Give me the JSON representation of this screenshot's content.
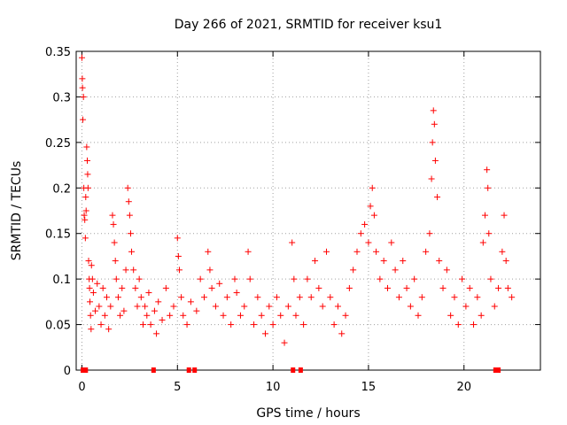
{
  "chart_data": {
    "type": "scatter",
    "title": "Day 266 of 2021, SRMTID for receiver ksu1",
    "xlabel": "GPS time / hours",
    "ylabel": "SRMTID / TECUs",
    "xlim": [
      -0.3,
      24.0
    ],
    "ylim": [
      0,
      0.35
    ],
    "x_ticks": [
      0,
      5,
      10,
      15,
      20
    ],
    "x_tick_labels": [
      "0",
      "5",
      "10",
      "15",
      "20"
    ],
    "y_ticks": [
      0,
      0.05,
      0.1,
      0.15,
      0.2,
      0.25,
      0.3,
      0.35
    ],
    "y_tick_labels": [
      "0",
      "0.05",
      "0.1",
      "0.15",
      "0.2",
      "0.25",
      "0.3",
      "0.35"
    ],
    "grid": true,
    "marker": "+",
    "color": "#ff0000",
    "zero_markers": [
      0.05,
      0.2,
      3.75,
      5.6,
      5.9,
      11.05,
      11.45,
      21.65,
      21.8
    ],
    "series": [
      {
        "name": "SRMTID",
        "points": [
          [
            0.0,
            0.343
          ],
          [
            0.02,
            0.32
          ],
          [
            0.03,
            0.31
          ],
          [
            0.05,
            0.275
          ],
          [
            0.08,
            0.3
          ],
          [
            0.1,
            0.2
          ],
          [
            0.12,
            0.17
          ],
          [
            0.15,
            0.165
          ],
          [
            0.18,
            0.145
          ],
          [
            0.2,
            0.19
          ],
          [
            0.22,
            0.175
          ],
          [
            0.25,
            0.245
          ],
          [
            0.28,
            0.23
          ],
          [
            0.3,
            0.215
          ],
          [
            0.32,
            0.2
          ],
          [
            0.35,
            0.12
          ],
          [
            0.38,
            0.1
          ],
          [
            0.4,
            0.09
          ],
          [
            0.42,
            0.075
          ],
          [
            0.45,
            0.06
          ],
          [
            0.48,
            0.045
          ],
          [
            0.5,
            0.115
          ],
          [
            0.55,
            0.1
          ],
          [
            0.6,
            0.085
          ],
          [
            0.7,
            0.065
          ],
          [
            0.8,
            0.095
          ],
          [
            0.9,
            0.07
          ],
          [
            1.0,
            0.05
          ],
          [
            1.1,
            0.09
          ],
          [
            1.2,
            0.06
          ],
          [
            1.3,
            0.08
          ],
          [
            1.4,
            0.045
          ],
          [
            1.5,
            0.07
          ],
          [
            1.6,
            0.17
          ],
          [
            1.65,
            0.16
          ],
          [
            1.7,
            0.14
          ],
          [
            1.75,
            0.12
          ],
          [
            1.8,
            0.1
          ],
          [
            1.9,
            0.08
          ],
          [
            2.0,
            0.06
          ],
          [
            2.1,
            0.09
          ],
          [
            2.2,
            0.065
          ],
          [
            2.3,
            0.11
          ],
          [
            2.4,
            0.2
          ],
          [
            2.45,
            0.185
          ],
          [
            2.5,
            0.17
          ],
          [
            2.55,
            0.15
          ],
          [
            2.6,
            0.13
          ],
          [
            2.7,
            0.11
          ],
          [
            2.8,
            0.09
          ],
          [
            2.9,
            0.07
          ],
          [
            3.0,
            0.1
          ],
          [
            3.1,
            0.08
          ],
          [
            3.2,
            0.05
          ],
          [
            3.3,
            0.07
          ],
          [
            3.4,
            0.06
          ],
          [
            3.5,
            0.085
          ],
          [
            3.6,
            0.05
          ],
          [
            3.8,
            0.065
          ],
          [
            3.9,
            0.04
          ],
          [
            4.0,
            0.075
          ],
          [
            4.2,
            0.055
          ],
          [
            4.4,
            0.09
          ],
          [
            4.6,
            0.06
          ],
          [
            4.8,
            0.07
          ],
          [
            5.0,
            0.145
          ],
          [
            5.05,
            0.125
          ],
          [
            5.1,
            0.11
          ],
          [
            5.2,
            0.08
          ],
          [
            5.3,
            0.06
          ],
          [
            5.5,
            0.05
          ],
          [
            5.7,
            0.075
          ],
          [
            6.0,
            0.065
          ],
          [
            6.2,
            0.1
          ],
          [
            6.4,
            0.08
          ],
          [
            6.6,
            0.13
          ],
          [
            6.7,
            0.11
          ],
          [
            6.8,
            0.09
          ],
          [
            7.0,
            0.07
          ],
          [
            7.2,
            0.095
          ],
          [
            7.4,
            0.06
          ],
          [
            7.6,
            0.08
          ],
          [
            7.8,
            0.05
          ],
          [
            8.0,
            0.1
          ],
          [
            8.1,
            0.085
          ],
          [
            8.3,
            0.06
          ],
          [
            8.5,
            0.07
          ],
          [
            8.7,
            0.13
          ],
          [
            8.8,
            0.1
          ],
          [
            9.0,
            0.05
          ],
          [
            9.2,
            0.08
          ],
          [
            9.4,
            0.06
          ],
          [
            9.6,
            0.04
          ],
          [
            9.8,
            0.07
          ],
          [
            10.0,
            0.05
          ],
          [
            10.2,
            0.08
          ],
          [
            10.4,
            0.06
          ],
          [
            10.6,
            0.03
          ],
          [
            10.8,
            0.07
          ],
          [
            11.0,
            0.14
          ],
          [
            11.1,
            0.1
          ],
          [
            11.2,
            0.06
          ],
          [
            11.4,
            0.08
          ],
          [
            11.6,
            0.05
          ],
          [
            11.8,
            0.1
          ],
          [
            12.0,
            0.08
          ],
          [
            12.2,
            0.12
          ],
          [
            12.4,
            0.09
          ],
          [
            12.6,
            0.07
          ],
          [
            12.8,
            0.13
          ],
          [
            13.0,
            0.08
          ],
          [
            13.2,
            0.05
          ],
          [
            13.4,
            0.07
          ],
          [
            13.6,
            0.04
          ],
          [
            13.8,
            0.06
          ],
          [
            14.0,
            0.09
          ],
          [
            14.2,
            0.11
          ],
          [
            14.4,
            0.13
          ],
          [
            14.6,
            0.15
          ],
          [
            14.8,
            0.16
          ],
          [
            15.0,
            0.14
          ],
          [
            15.1,
            0.18
          ],
          [
            15.2,
            0.2
          ],
          [
            15.3,
            0.17
          ],
          [
            15.4,
            0.13
          ],
          [
            15.6,
            0.1
          ],
          [
            15.8,
            0.12
          ],
          [
            16.0,
            0.09
          ],
          [
            16.2,
            0.14
          ],
          [
            16.4,
            0.11
          ],
          [
            16.6,
            0.08
          ],
          [
            16.8,
            0.12
          ],
          [
            17.0,
            0.09
          ],
          [
            17.2,
            0.07
          ],
          [
            17.4,
            0.1
          ],
          [
            17.6,
            0.06
          ],
          [
            17.8,
            0.08
          ],
          [
            18.0,
            0.13
          ],
          [
            18.2,
            0.15
          ],
          [
            18.3,
            0.21
          ],
          [
            18.35,
            0.25
          ],
          [
            18.4,
            0.285
          ],
          [
            18.45,
            0.27
          ],
          [
            18.5,
            0.23
          ],
          [
            18.6,
            0.19
          ],
          [
            18.7,
            0.12
          ],
          [
            18.9,
            0.09
          ],
          [
            19.1,
            0.11
          ],
          [
            19.3,
            0.06
          ],
          [
            19.5,
            0.08
          ],
          [
            19.7,
            0.05
          ],
          [
            19.9,
            0.1
          ],
          [
            20.1,
            0.07
          ],
          [
            20.3,
            0.09
          ],
          [
            20.5,
            0.05
          ],
          [
            20.7,
            0.08
          ],
          [
            20.9,
            0.06
          ],
          [
            21.0,
            0.14
          ],
          [
            21.1,
            0.17
          ],
          [
            21.2,
            0.22
          ],
          [
            21.25,
            0.2
          ],
          [
            21.3,
            0.15
          ],
          [
            21.4,
            0.1
          ],
          [
            21.6,
            0.07
          ],
          [
            21.8,
            0.09
          ],
          [
            22.0,
            0.13
          ],
          [
            22.1,
            0.17
          ],
          [
            22.2,
            0.12
          ],
          [
            22.3,
            0.09
          ],
          [
            22.5,
            0.08
          ]
        ]
      }
    ]
  }
}
